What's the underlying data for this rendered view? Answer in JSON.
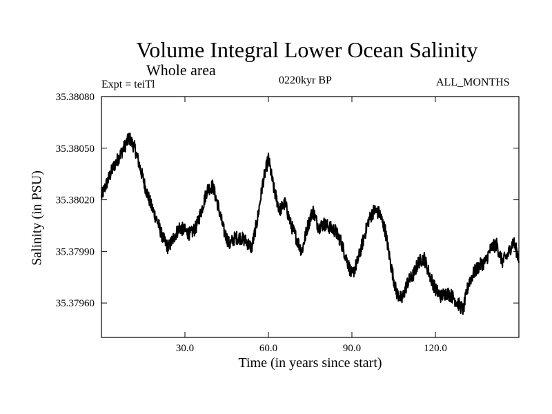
{
  "chart_data": {
    "type": "line",
    "title": "Volume Integral Lower Ocean Salinity",
    "subtitle": "Whole area",
    "annotation_left": "Expt = teiTl",
    "annotation_center": "0220kyr BP",
    "annotation_right": "ALL_MONTHS",
    "xlabel": "Time (in years since start)",
    "ylabel": "Salinity (in PSU)",
    "xlim": [
      0,
      150
    ],
    "ylim": [
      35.3794,
      35.3808
    ],
    "xticks": [
      30,
      60,
      90,
      120
    ],
    "xtick_labels": [
      "30.0",
      "60.0",
      "90.0",
      "120.0"
    ],
    "yticks": [
      35.3796,
      35.3799,
      35.3802,
      35.3805,
      35.3808
    ],
    "ytick_labels": [
      "35.37960",
      "35.37990",
      "35.38020",
      "35.38050",
      "35.38080"
    ],
    "series": [
      {
        "name": "Salinity",
        "x": [
          0,
          2,
          4,
          6,
          8,
          10,
          12,
          14,
          16,
          18,
          20,
          22,
          24,
          26,
          28,
          30,
          32,
          34,
          36,
          38,
          40,
          42,
          44,
          46,
          48,
          50,
          52,
          54,
          56,
          58,
          60,
          62,
          64,
          66,
          68,
          70,
          72,
          74,
          76,
          78,
          80,
          82,
          84,
          86,
          88,
          90,
          92,
          94,
          96,
          98,
          100,
          102,
          104,
          106,
          108,
          110,
          112,
          114,
          116,
          118,
          120,
          122,
          124,
          126,
          128,
          130,
          132,
          134,
          136,
          138,
          140,
          142,
          144,
          146,
          148,
          150
        ],
        "y": [
          35.38022,
          35.3803,
          35.38038,
          35.38044,
          35.3805,
          35.38056,
          35.3805,
          35.38038,
          35.38026,
          35.38016,
          35.38008,
          35.37998,
          35.37992,
          35.37998,
          35.38004,
          35.38002,
          35.38,
          35.38004,
          35.38014,
          35.38026,
          35.38028,
          35.38016,
          35.38002,
          35.37994,
          35.37998,
          35.37998,
          35.37996,
          35.37992,
          35.38008,
          35.3803,
          35.38044,
          35.38026,
          35.38014,
          35.38018,
          35.38006,
          35.37998,
          35.3799,
          35.38004,
          35.38014,
          35.38004,
          35.38006,
          35.38004,
          35.38002,
          35.37996,
          35.37986,
          35.37976,
          35.37984,
          35.37996,
          35.38008,
          35.38014,
          35.38012,
          35.38002,
          35.37982,
          35.37966,
          35.37962,
          35.37972,
          35.37976,
          35.37984,
          35.37986,
          35.37976,
          35.37968,
          35.37964,
          35.37966,
          35.37964,
          35.3796,
          35.37956,
          35.37972,
          35.37978,
          35.37982,
          35.37984,
          35.37992,
          35.37994,
          35.37984,
          35.37988,
          35.37996,
          35.37986
        ]
      }
    ]
  }
}
